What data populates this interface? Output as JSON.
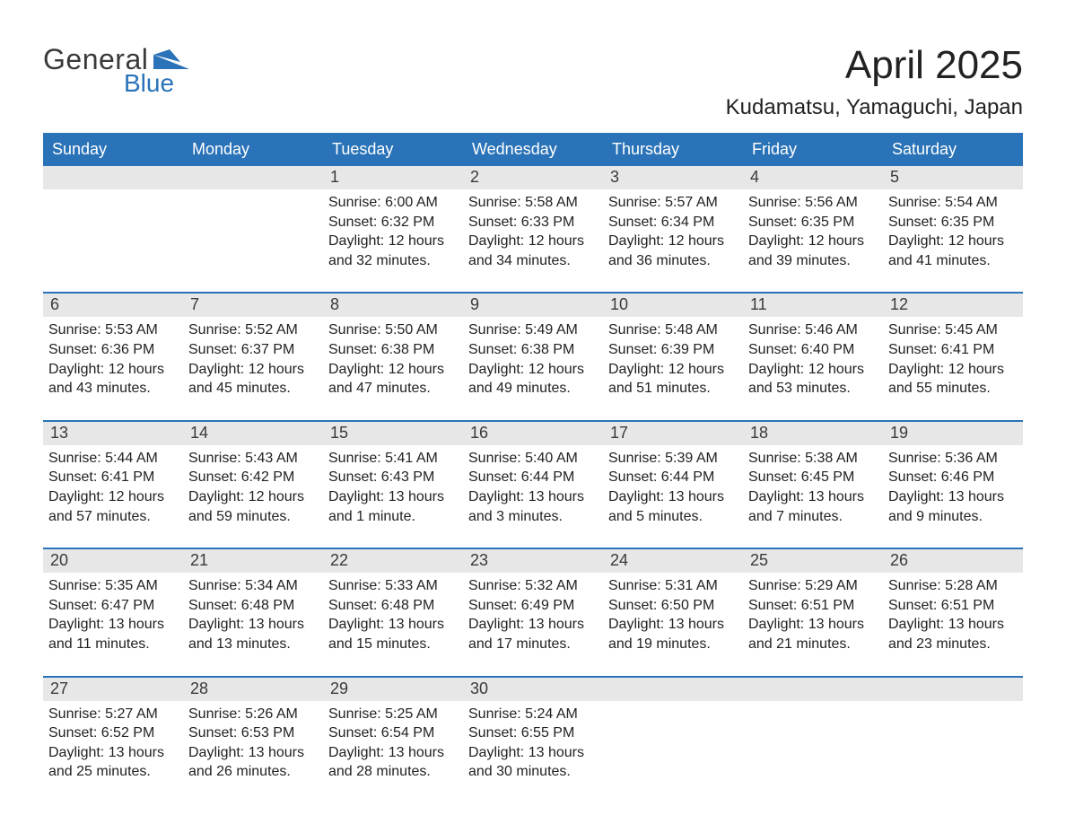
{
  "logo": {
    "general": "General",
    "blue": "Blue",
    "mark_color": "#2a73b8"
  },
  "title": "April 2025",
  "location": "Kudamatsu, Yamaguchi, Japan",
  "colors": {
    "header_bg": "#2a73b8",
    "header_text": "#ffffff",
    "daynum_bg": "#e7e7e7",
    "week_divider": "#2a73b8",
    "body_text": "#222222",
    "background": "#ffffff"
  },
  "typography": {
    "title_fontsize_pt": 33,
    "location_fontsize_pt": 18,
    "dow_fontsize_pt": 14,
    "daynum_fontsize_pt": 14,
    "body_fontsize_pt": 12
  },
  "days_of_week": [
    "Sunday",
    "Monday",
    "Tuesday",
    "Wednesday",
    "Thursday",
    "Friday",
    "Saturday"
  ],
  "weeks": [
    [
      {
        "n": "",
        "sunrise": "",
        "sunset": "",
        "daylight1": "",
        "daylight2": ""
      },
      {
        "n": "",
        "sunrise": "",
        "sunset": "",
        "daylight1": "",
        "daylight2": ""
      },
      {
        "n": "1",
        "sunrise": "Sunrise: 6:00 AM",
        "sunset": "Sunset: 6:32 PM",
        "daylight1": "Daylight: 12 hours",
        "daylight2": "and 32 minutes."
      },
      {
        "n": "2",
        "sunrise": "Sunrise: 5:58 AM",
        "sunset": "Sunset: 6:33 PM",
        "daylight1": "Daylight: 12 hours",
        "daylight2": "and 34 minutes."
      },
      {
        "n": "3",
        "sunrise": "Sunrise: 5:57 AM",
        "sunset": "Sunset: 6:34 PM",
        "daylight1": "Daylight: 12 hours",
        "daylight2": "and 36 minutes."
      },
      {
        "n": "4",
        "sunrise": "Sunrise: 5:56 AM",
        "sunset": "Sunset: 6:35 PM",
        "daylight1": "Daylight: 12 hours",
        "daylight2": "and 39 minutes."
      },
      {
        "n": "5",
        "sunrise": "Sunrise: 5:54 AM",
        "sunset": "Sunset: 6:35 PM",
        "daylight1": "Daylight: 12 hours",
        "daylight2": "and 41 minutes."
      }
    ],
    [
      {
        "n": "6",
        "sunrise": "Sunrise: 5:53 AM",
        "sunset": "Sunset: 6:36 PM",
        "daylight1": "Daylight: 12 hours",
        "daylight2": "and 43 minutes."
      },
      {
        "n": "7",
        "sunrise": "Sunrise: 5:52 AM",
        "sunset": "Sunset: 6:37 PM",
        "daylight1": "Daylight: 12 hours",
        "daylight2": "and 45 minutes."
      },
      {
        "n": "8",
        "sunrise": "Sunrise: 5:50 AM",
        "sunset": "Sunset: 6:38 PM",
        "daylight1": "Daylight: 12 hours",
        "daylight2": "and 47 minutes."
      },
      {
        "n": "9",
        "sunrise": "Sunrise: 5:49 AM",
        "sunset": "Sunset: 6:38 PM",
        "daylight1": "Daylight: 12 hours",
        "daylight2": "and 49 minutes."
      },
      {
        "n": "10",
        "sunrise": "Sunrise: 5:48 AM",
        "sunset": "Sunset: 6:39 PM",
        "daylight1": "Daylight: 12 hours",
        "daylight2": "and 51 minutes."
      },
      {
        "n": "11",
        "sunrise": "Sunrise: 5:46 AM",
        "sunset": "Sunset: 6:40 PM",
        "daylight1": "Daylight: 12 hours",
        "daylight2": "and 53 minutes."
      },
      {
        "n": "12",
        "sunrise": "Sunrise: 5:45 AM",
        "sunset": "Sunset: 6:41 PM",
        "daylight1": "Daylight: 12 hours",
        "daylight2": "and 55 minutes."
      }
    ],
    [
      {
        "n": "13",
        "sunrise": "Sunrise: 5:44 AM",
        "sunset": "Sunset: 6:41 PM",
        "daylight1": "Daylight: 12 hours",
        "daylight2": "and 57 minutes."
      },
      {
        "n": "14",
        "sunrise": "Sunrise: 5:43 AM",
        "sunset": "Sunset: 6:42 PM",
        "daylight1": "Daylight: 12 hours",
        "daylight2": "and 59 minutes."
      },
      {
        "n": "15",
        "sunrise": "Sunrise: 5:41 AM",
        "sunset": "Sunset: 6:43 PM",
        "daylight1": "Daylight: 13 hours",
        "daylight2": "and 1 minute."
      },
      {
        "n": "16",
        "sunrise": "Sunrise: 5:40 AM",
        "sunset": "Sunset: 6:44 PM",
        "daylight1": "Daylight: 13 hours",
        "daylight2": "and 3 minutes."
      },
      {
        "n": "17",
        "sunrise": "Sunrise: 5:39 AM",
        "sunset": "Sunset: 6:44 PM",
        "daylight1": "Daylight: 13 hours",
        "daylight2": "and 5 minutes."
      },
      {
        "n": "18",
        "sunrise": "Sunrise: 5:38 AM",
        "sunset": "Sunset: 6:45 PM",
        "daylight1": "Daylight: 13 hours",
        "daylight2": "and 7 minutes."
      },
      {
        "n": "19",
        "sunrise": "Sunrise: 5:36 AM",
        "sunset": "Sunset: 6:46 PM",
        "daylight1": "Daylight: 13 hours",
        "daylight2": "and 9 minutes."
      }
    ],
    [
      {
        "n": "20",
        "sunrise": "Sunrise: 5:35 AM",
        "sunset": "Sunset: 6:47 PM",
        "daylight1": "Daylight: 13 hours",
        "daylight2": "and 11 minutes."
      },
      {
        "n": "21",
        "sunrise": "Sunrise: 5:34 AM",
        "sunset": "Sunset: 6:48 PM",
        "daylight1": "Daylight: 13 hours",
        "daylight2": "and 13 minutes."
      },
      {
        "n": "22",
        "sunrise": "Sunrise: 5:33 AM",
        "sunset": "Sunset: 6:48 PM",
        "daylight1": "Daylight: 13 hours",
        "daylight2": "and 15 minutes."
      },
      {
        "n": "23",
        "sunrise": "Sunrise: 5:32 AM",
        "sunset": "Sunset: 6:49 PM",
        "daylight1": "Daylight: 13 hours",
        "daylight2": "and 17 minutes."
      },
      {
        "n": "24",
        "sunrise": "Sunrise: 5:31 AM",
        "sunset": "Sunset: 6:50 PM",
        "daylight1": "Daylight: 13 hours",
        "daylight2": "and 19 minutes."
      },
      {
        "n": "25",
        "sunrise": "Sunrise: 5:29 AM",
        "sunset": "Sunset: 6:51 PM",
        "daylight1": "Daylight: 13 hours",
        "daylight2": "and 21 minutes."
      },
      {
        "n": "26",
        "sunrise": "Sunrise: 5:28 AM",
        "sunset": "Sunset: 6:51 PM",
        "daylight1": "Daylight: 13 hours",
        "daylight2": "and 23 minutes."
      }
    ],
    [
      {
        "n": "27",
        "sunrise": "Sunrise: 5:27 AM",
        "sunset": "Sunset: 6:52 PM",
        "daylight1": "Daylight: 13 hours",
        "daylight2": "and 25 minutes."
      },
      {
        "n": "28",
        "sunrise": "Sunrise: 5:26 AM",
        "sunset": "Sunset: 6:53 PM",
        "daylight1": "Daylight: 13 hours",
        "daylight2": "and 26 minutes."
      },
      {
        "n": "29",
        "sunrise": "Sunrise: 5:25 AM",
        "sunset": "Sunset: 6:54 PM",
        "daylight1": "Daylight: 13 hours",
        "daylight2": "and 28 minutes."
      },
      {
        "n": "30",
        "sunrise": "Sunrise: 5:24 AM",
        "sunset": "Sunset: 6:55 PM",
        "daylight1": "Daylight: 13 hours",
        "daylight2": "and 30 minutes."
      },
      {
        "n": "",
        "sunrise": "",
        "sunset": "",
        "daylight1": "",
        "daylight2": ""
      },
      {
        "n": "",
        "sunrise": "",
        "sunset": "",
        "daylight1": "",
        "daylight2": ""
      },
      {
        "n": "",
        "sunrise": "",
        "sunset": "",
        "daylight1": "",
        "daylight2": ""
      }
    ]
  ]
}
